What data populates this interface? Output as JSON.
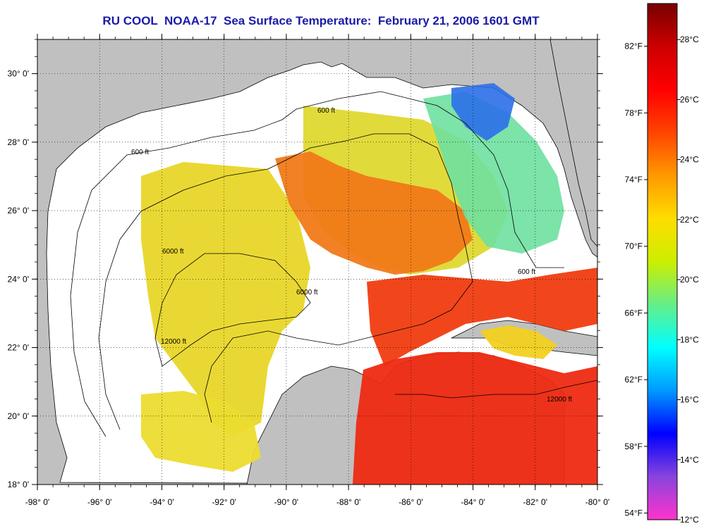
{
  "title": "RU COOL  NOAA-17  Sea Surface Temperature:  February 21, 2006 1601 GMT",
  "map": {
    "lon_range": [
      -98,
      -80
    ],
    "lat_range": [
      18,
      31
    ],
    "lon_ticks": [
      {
        "value": -98,
        "label": "-98° 0'"
      },
      {
        "value": -96,
        "label": "-96° 0'"
      },
      {
        "value": -94,
        "label": "-94° 0'"
      },
      {
        "value": -92,
        "label": "-92° 0'"
      },
      {
        "value": -90,
        "label": "-90° 0'"
      },
      {
        "value": -88,
        "label": "-88° 0'"
      },
      {
        "value": -86,
        "label": "-86° 0'"
      },
      {
        "value": -84,
        "label": "-84° 0'"
      },
      {
        "value": -82,
        "label": "-82° 0'"
      },
      {
        "value": -80,
        "label": "-80° 0'"
      }
    ],
    "lat_ticks": [
      {
        "value": 18,
        "label": "18° 0'"
      },
      {
        "value": 20,
        "label": "20° 0'"
      },
      {
        "value": 22,
        "label": "22° 0'"
      },
      {
        "value": 24,
        "label": "24° 0'"
      },
      {
        "value": 26,
        "label": "26° 0'"
      },
      {
        "value": 28,
        "label": "28° 0'"
      },
      {
        "value": 30,
        "label": "30° 0'"
      }
    ],
    "grid": "dotted",
    "contour_labels": [
      "600 ft",
      "6000 ft",
      "12000 ft"
    ],
    "colors": {
      "land": "#c0c0c0",
      "cloud": "#ffffff",
      "frame": "#000000"
    }
  },
  "colorbar": {
    "celsius": [
      {
        "value": 28,
        "label": "28°C"
      },
      {
        "value": 26,
        "label": "26°C"
      },
      {
        "value": 24,
        "label": "24°C"
      },
      {
        "value": 22,
        "label": "22°C"
      },
      {
        "value": 20,
        "label": "20°C"
      },
      {
        "value": 18,
        "label": "18°C"
      },
      {
        "value": 16,
        "label": "16°C"
      },
      {
        "value": 14,
        "label": "14°C"
      },
      {
        "value": 12,
        "label": "12°C"
      }
    ],
    "fahrenheit": [
      {
        "value": 82,
        "label": "82°F"
      },
      {
        "value": 78,
        "label": "78°F"
      },
      {
        "value": 74,
        "label": "74°F"
      },
      {
        "value": 70,
        "label": "70°F"
      },
      {
        "value": 66,
        "label": "66°F"
      },
      {
        "value": 62,
        "label": "62°F"
      },
      {
        "value": 58,
        "label": "58°F"
      },
      {
        "value": 54,
        "label": "54°F"
      }
    ],
    "range_c": [
      12,
      29.2
    ],
    "stops": [
      "#ff33cc",
      "#8844dd",
      "#0000ff",
      "#0099ff",
      "#00ffff",
      "#66ee88",
      "#ccee00",
      "#ffdd00",
      "#ff9900",
      "#ff4400",
      "#ff0000",
      "#cc0000",
      "#770000"
    ]
  }
}
